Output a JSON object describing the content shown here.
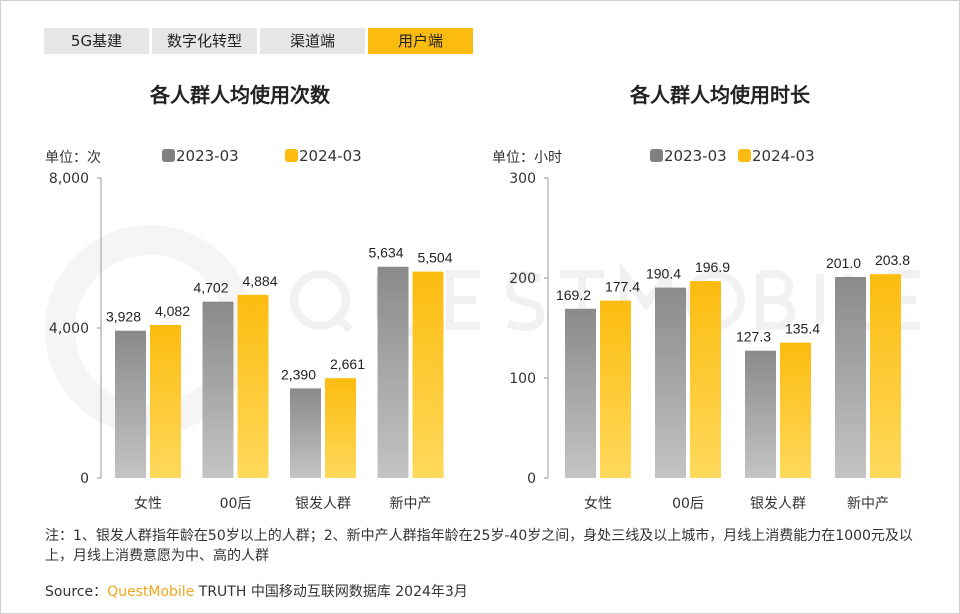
{
  "tabs": [
    {
      "label": "5G基建"
    },
    {
      "label": "数字化转型"
    },
    {
      "label": "渠道端"
    },
    {
      "label": "用户端",
      "active": true
    }
  ],
  "colors": {
    "series_2023": "#808080",
    "series_2024": "#fbbc0f",
    "accent": "#fbbc0f"
  },
  "watermark": "QUESTMOBILE",
  "chart_data": [
    {
      "type": "bar",
      "title": "各人群人均使用次数",
      "unit_label": "单位：次",
      "categories": [
        "女性",
        "00后",
        "银发人群",
        "新中产"
      ],
      "series": [
        {
          "name": "2023-03",
          "values": [
            3928,
            4702,
            2390,
            5634
          ],
          "labels": [
            "3,928",
            "4,702",
            "2,390",
            "5,634"
          ]
        },
        {
          "name": "2024-03",
          "values": [
            4082,
            4884,
            2661,
            5504
          ],
          "labels": [
            "4,082",
            "4,884",
            "2,661",
            "5,504"
          ]
        }
      ],
      "yticks": [
        "0",
        "4,000",
        "8,000"
      ],
      "ytick_values": [
        0,
        4000,
        8000
      ],
      "ylim": [
        0,
        8000
      ],
      "grid": false,
      "legend": "top"
    },
    {
      "type": "bar",
      "title": "各人群人均使用时长",
      "unit_label": "单位：小时",
      "categories": [
        "女性",
        "00后",
        "银发人群",
        "新中产"
      ],
      "series": [
        {
          "name": "2023-03",
          "values": [
            169.2,
            190.4,
            127.3,
            201.0
          ],
          "labels": [
            "169.2",
            "190.4",
            "127.3",
            "201.0"
          ]
        },
        {
          "name": "2024-03",
          "values": [
            177.4,
            196.9,
            135.4,
            203.8
          ],
          "labels": [
            "177.4",
            "196.9",
            "135.4",
            "203.8"
          ]
        }
      ],
      "yticks": [
        "0",
        "100",
        "200",
        "300"
      ],
      "ytick_values": [
        0,
        100,
        200,
        300
      ],
      "ylim": [
        0,
        300
      ],
      "grid": false,
      "legend": "top"
    }
  ],
  "note": "注：1、银发人群指年龄在50岁以上的人群；2、新中产人群指年龄在25岁-40岁之间，身处三线及以上城市，月线上消费能力在1000元及以上，月线上消费意愿为中、高的人群",
  "source": {
    "prefix": "Source：",
    "brand": "QuestMobile",
    "rest": " TRUTH 中国移动互联网数据库 2024年3月"
  }
}
